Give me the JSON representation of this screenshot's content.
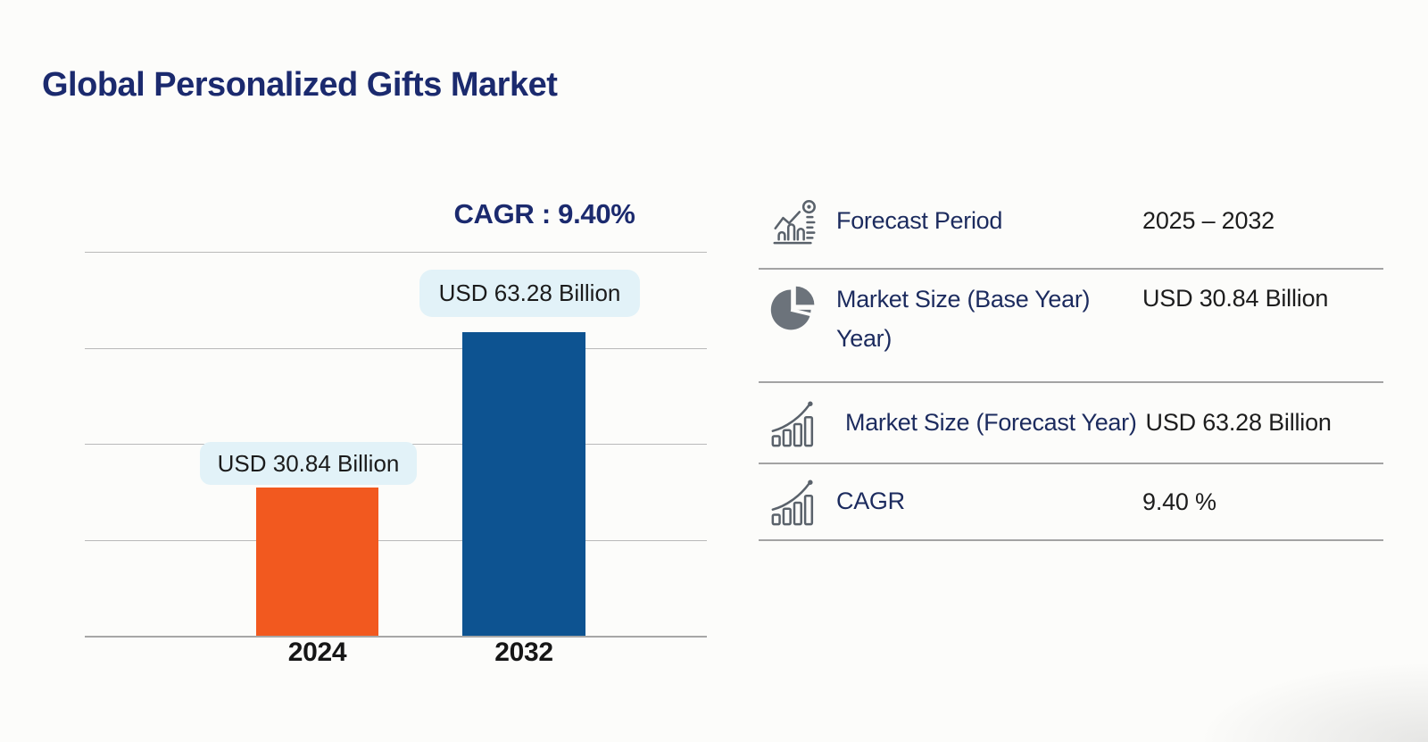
{
  "page": {
    "title": "Global Personalized Gifts Market"
  },
  "colors": {
    "navy": "#1b2a6e",
    "label-navy": "#1c2b5e",
    "value-dark": "#1d1d1d",
    "badge-bg": "#e2f2f8",
    "gridline": "#b9b9b9",
    "divider": "#a3a3a3",
    "icon-gray": "#5a626b"
  },
  "chart_data": {
    "type": "bar",
    "title": "Global Personalized Gifts Market",
    "annotation": "CAGR : 9.40%",
    "categories": [
      "2024",
      "2032"
    ],
    "values": [
      30.84,
      63.28
    ],
    "unit": "USD Billion",
    "bar_labels": [
      "USD 30.84 Billion",
      "USD 63.28 Billion"
    ],
    "bar_colors": [
      "#f2591f",
      "#0d5391"
    ],
    "ylim": [
      0,
      80
    ],
    "gridline_count": 5,
    "grid": "horizontal",
    "legend": "none",
    "xlabel": "",
    "ylabel": ""
  },
  "info_table": {
    "rows": [
      {
        "icon": "forecast-period-icon",
        "label": "Forecast Period",
        "value": "2025 – 2032"
      },
      {
        "icon": "pie-chart-icon",
        "label": "Market Size (Base Year) Year)",
        "value": "USD 30.84 Billion"
      },
      {
        "icon": "growth-chart-icon",
        "label": "Market Size (Forecast Year)",
        "value": "USD 63.28 Billion"
      },
      {
        "icon": "growth-chart-icon",
        "label": "CAGR",
        "value": "9.40 %"
      }
    ]
  }
}
